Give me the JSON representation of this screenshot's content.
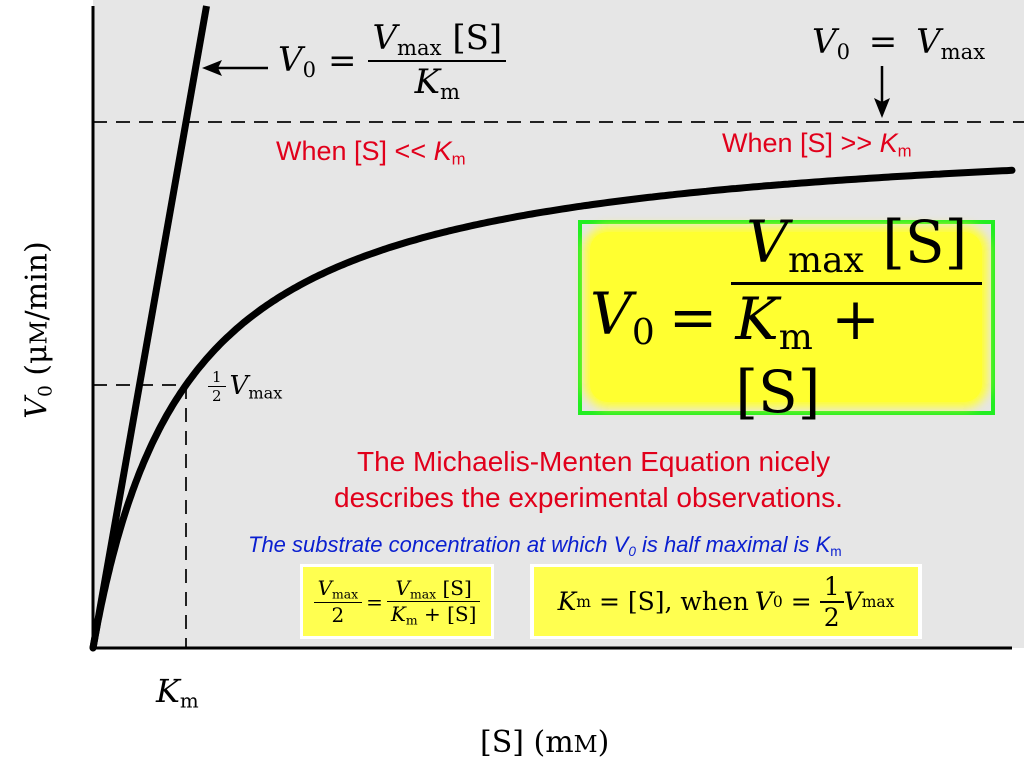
{
  "chart_data": {
    "type": "line",
    "title": "",
    "xlabel": "[S] (mM)",
    "ylabel": "V0 (μM/min)",
    "series": [
      {
        "name": "V0 = Vmax[S] / (Km + [S])",
        "kind": "michaelis-menten",
        "vmax": 1.0,
        "km": 1.0
      },
      {
        "name": "V0 = Vmax[S] / Km",
        "kind": "initial-slope"
      }
    ],
    "reference_lines": [
      {
        "label": "Vmax",
        "y_fraction_of_vmax": 1.0
      },
      {
        "label": "½ Vmax",
        "y_fraction_of_vmax": 0.5
      },
      {
        "label": "Km",
        "x_in_km": 1.0
      }
    ],
    "x_tick_labels": [
      "Km"
    ],
    "grid": false,
    "background": "#e6e6e6"
  },
  "annotations": {
    "slope_eq_left": "V",
    "slope_eq_left_sub": "0",
    "slope_eq_equals": "=",
    "slope_eq_num_v": "V",
    "slope_eq_num_sub": "max",
    "slope_eq_num_s": "[S]",
    "slope_eq_den_k": "K",
    "slope_eq_den_sub": "m",
    "vmax_eq_v0": "V",
    "vmax_eq_v0_sub": "0",
    "vmax_eq_equals": "=",
    "vmax_eq_v": "V",
    "vmax_eq_sub": "max",
    "half_num": "1",
    "half_den": "2",
    "half_v": "V",
    "half_sub": "max",
    "x_tick_k": "K",
    "x_tick_sub": "m",
    "x_title": "[S] (m",
    "x_title_m": "M",
    "x_title_close": ")",
    "y_title_v": "V",
    "y_title_sub": "0",
    "y_title_rest": " (μ",
    "y_title_m": "M",
    "y_title_unit": "/min)"
  },
  "notes": {
    "low_text": "When [S] << ",
    "low_k": "K",
    "low_sub": "m",
    "high_text": "When [S] >> ",
    "high_k": "K",
    "high_sub": "m",
    "desc_line1": "The Michaelis-Menten Equation nicely",
    "desc_line2": "describes the experimental observations.",
    "blue_text_a": "The substrate concentration at which V",
    "blue_sub_0": "0",
    "blue_text_b": " is half maximal is K",
    "blue_sub_m": "m"
  },
  "mm_equation": {
    "v": "V",
    "v_sub": "0",
    "equals": "=",
    "num_v": "V",
    "num_sub": "max",
    "num_s": "[S]",
    "den_k": "K",
    "den_sub": "m",
    "den_plus": "+ [S]"
  },
  "half_eq": {
    "num_v": "V",
    "num_sub": "max",
    "den_2": "2",
    "equals": "=",
    "r_num_v": "V",
    "r_num_sub": "max",
    "r_num_s": "[S]",
    "r_den_k": "K",
    "r_den_sub": "m",
    "r_den_plus": "+ [S]"
  },
  "km_eq": {
    "k": "K",
    "k_sub": "m",
    "equals_s": "= [S], when ",
    "v": "V",
    "v_sub": "0",
    "equals": "=",
    "num_1": "1",
    "den_2": "2",
    "vmax_v": "V",
    "vmax_sub": "max"
  },
  "colors": {
    "red": "#e1001b",
    "blue": "#0a1fd0",
    "green_box": "#22ee22",
    "highlight": "#ffff30"
  }
}
